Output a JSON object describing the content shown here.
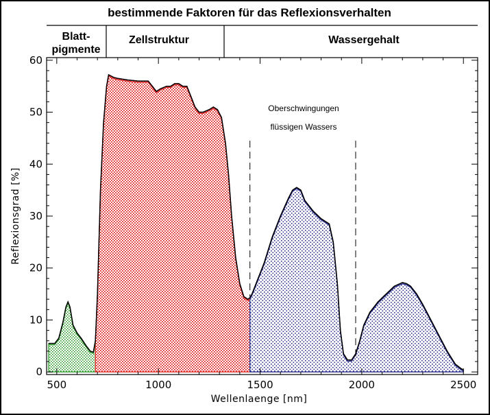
{
  "chart_data": {
    "type": "area",
    "title": "bestimmende Faktoren für das Reflexionsverhalten",
    "xlabel": "Wellenlaenge [nm]",
    "ylabel": "Reflexionsgrad [%]",
    "xlim": [
      450,
      2570
    ],
    "ylim": [
      -0.5,
      60.5
    ],
    "xticks": [
      500,
      1000,
      1500,
      2000,
      2500
    ],
    "yticks": [
      0,
      10,
      20,
      30,
      40,
      50,
      60
    ],
    "xtick_labels": [
      "500",
      "1000",
      "1500",
      "2000",
      "2500"
    ],
    "ytick_labels": [
      "0",
      "10",
      "20",
      "30",
      "40",
      "50",
      "60"
    ],
    "grid": false,
    "regions": [
      {
        "label_line1": "Blatt-",
        "label_line2": "pigmente",
        "x_start": 450,
        "x_end": 700
      },
      {
        "label_line1": "Zellstruktur",
        "label_line2": "",
        "x_start": 700,
        "x_end": 1300
      },
      {
        "label_line1": "Wassergehalt",
        "label_line2": "",
        "x_start": 1300,
        "x_end": 2570
      }
    ],
    "annotations": [
      {
        "line1": "Oberschwingungen",
        "line2": "flüssigen Wassers"
      }
    ],
    "water_band_markers": [
      1450,
      1970
    ],
    "spectrum": {
      "x": [
        460,
        490,
        510,
        530,
        545,
        555,
        565,
        580,
        600,
        620,
        645,
        665,
        680,
        690,
        700,
        715,
        730,
        745,
        755,
        765,
        780,
        800,
        850,
        900,
        950,
        970,
        990,
        1010,
        1040,
        1060,
        1080,
        1100,
        1120,
        1140,
        1160,
        1180,
        1200,
        1220,
        1250,
        1270,
        1290,
        1310,
        1330,
        1345,
        1360,
        1380,
        1400,
        1420,
        1440,
        1450,
        1460,
        1480,
        1520,
        1560,
        1600,
        1640,
        1660,
        1680,
        1700,
        1720,
        1760,
        1800,
        1840,
        1860,
        1880,
        1895,
        1910,
        1930,
        1950,
        1970,
        1990,
        2010,
        2040,
        2080,
        2120,
        2160,
        2200,
        2220,
        2240,
        2270,
        2300,
        2340,
        2380,
        2420,
        2460,
        2490,
        2500
      ],
      "y": [
        5.5,
        5.5,
        6.5,
        9.5,
        12.5,
        13.5,
        12.5,
        9,
        7.5,
        6.5,
        5,
        4,
        3.8,
        6,
        15,
        35,
        48,
        55,
        57.2,
        57,
        56.7,
        56.5,
        56.2,
        56,
        56,
        55,
        54,
        54.5,
        55,
        55,
        55.5,
        55.5,
        55,
        55,
        53,
        51,
        50,
        50,
        50.5,
        51,
        50.5,
        49,
        44,
        38,
        30,
        22,
        17,
        14.5,
        14,
        14.3,
        15,
        17,
        21,
        26,
        30,
        33.5,
        35,
        35.5,
        35,
        33,
        31,
        29.5,
        28.5,
        25,
        17,
        8,
        3.5,
        2.3,
        2.3,
        3.5,
        6,
        9,
        11.5,
        13.5,
        15,
        16.5,
        17.2,
        17,
        16.5,
        15,
        13,
        10,
        7,
        4,
        1.5,
        0.6,
        0.4
      ],
      "fills": [
        {
          "x_start": 460,
          "x_end": 690,
          "color": "#2e9b2e"
        },
        {
          "x_start": 690,
          "x_end": 1450,
          "color": "#e02828"
        },
        {
          "x_start": 1450,
          "x_end": 2500,
          "color": "#2a2f8c"
        }
      ]
    }
  }
}
